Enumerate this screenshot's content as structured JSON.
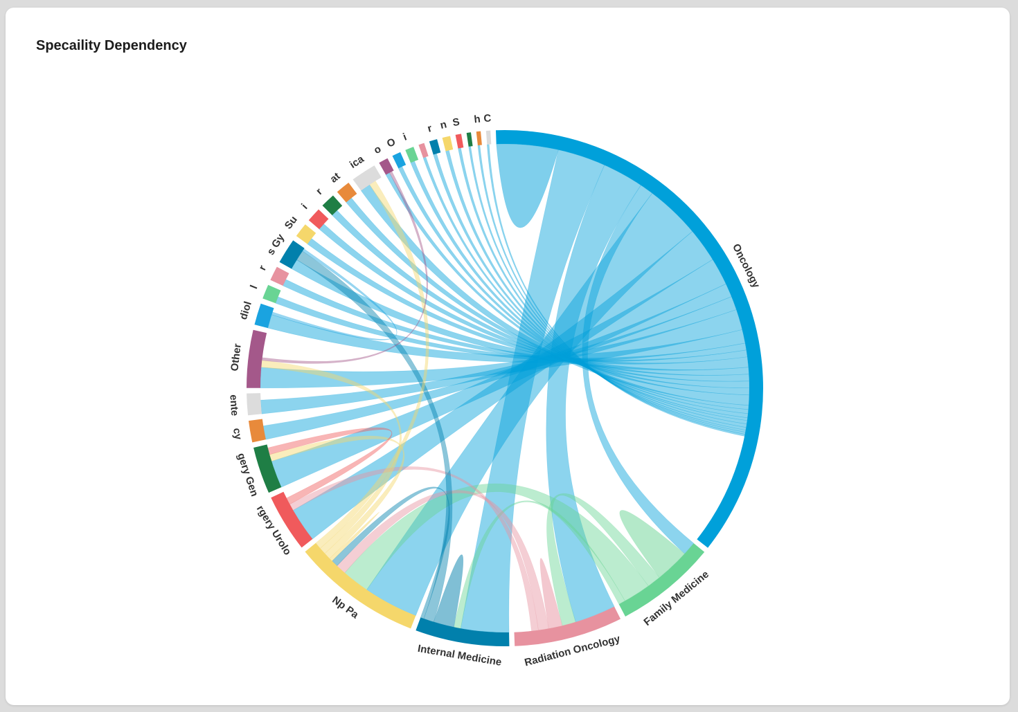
{
  "card": {
    "title": "Specaility Dependency"
  },
  "chart_data": {
    "type": "chord",
    "title": "Specaility Dependency",
    "segments": [
      {
        "id": "oncology",
        "label": "Oncology",
        "color": "#00a0da",
        "size": 80
      },
      {
        "id": "family",
        "label": "Family Medicine",
        "color": "#69d494",
        "size": 14
      },
      {
        "id": "radonc",
        "label": "Radiation Oncology",
        "color": "#e7929f",
        "size": 15
      },
      {
        "id": "internal",
        "label": "Internal Medicine",
        "color": "#0180ac",
        "size": 13
      },
      {
        "id": "nppa",
        "label": "Np Pa",
        "color": "#f5d76b",
        "size": 18
      },
      {
        "id": "urology",
        "label": "rgery Urolo",
        "color": "#f05a5c",
        "size": 8
      },
      {
        "id": "gensurg",
        "label": "gery Gen",
        "color": "#1f7e45",
        "size": 6.5
      },
      {
        "id": "emergency",
        "label": "cy",
        "color": "#e88a3b",
        "size": 3
      },
      {
        "id": "gastro",
        "label": "ente",
        "color": "#dcdcdc",
        "size": 3
      },
      {
        "id": "other",
        "label": "Other",
        "color": "#a4588a",
        "size": 8
      },
      {
        "id": "radiology",
        "label": "diol",
        "color": "#1aa3e0",
        "size": 3
      },
      {
        "id": "s1",
        "label": "l",
        "color": "#69d494",
        "size": 2
      },
      {
        "id": "s2",
        "label": "r",
        "color": "#e7929f",
        "size": 2
      },
      {
        "id": "gyn",
        "label": "s Gy",
        "color": "#0180ac",
        "size": 3.5
      },
      {
        "id": "s3",
        "label": "Su",
        "color": "#f5d76b",
        "size": 2
      },
      {
        "id": "s4",
        "label": "i",
        "color": "#f05a5c",
        "size": 2
      },
      {
        "id": "s5",
        "label": "r",
        "color": "#1f7e45",
        "size": 2
      },
      {
        "id": "s6",
        "label": "at",
        "color": "#e88a3b",
        "size": 2
      },
      {
        "id": "s7",
        "label": "ica",
        "color": "#dcdcdc",
        "size": 3.5
      },
      {
        "id": "s8",
        "label": "o",
        "color": "#a4588a",
        "size": 1.3
      },
      {
        "id": "s9",
        "label": "O",
        "color": "#1aa3e0",
        "size": 1.2
      },
      {
        "id": "s10",
        "label": "i",
        "color": "#69d494",
        "size": 1.2
      },
      {
        "id": "s11",
        "label": "",
        "color": "#e7929f",
        "size": 0.8
      },
      {
        "id": "s12",
        "label": "r",
        "color": "#0180ac",
        "size": 1.1
      },
      {
        "id": "s13",
        "label": "n",
        "color": "#f5d76b",
        "size": 1.1
      },
      {
        "id": "s14",
        "label": "S",
        "color": "#f05a5c",
        "size": 0.8
      },
      {
        "id": "s15",
        "label": "",
        "color": "#1f7e45",
        "size": 0.6
      },
      {
        "id": "s16",
        "label": "h",
        "color": "#e88a3b",
        "size": 0.6
      },
      {
        "id": "s17",
        "label": "C",
        "color": "#dcdcdc",
        "size": 0.6
      }
    ],
    "chords": [
      {
        "source": "oncology",
        "target": "oncology",
        "value": 9
      },
      {
        "source": "oncology",
        "target": "internal",
        "value": 7
      },
      {
        "source": "oncology",
        "target": "radonc",
        "value": 6
      },
      {
        "source": "oncology",
        "target": "family",
        "value": 2
      },
      {
        "source": "oncology",
        "target": "nppa",
        "value": 8
      },
      {
        "source": "oncology",
        "target": "urology",
        "value": 5
      },
      {
        "source": "oncology",
        "target": "gensurg",
        "value": 4
      },
      {
        "source": "oncology",
        "target": "emergency",
        "value": 2
      },
      {
        "source": "oncology",
        "target": "gastro",
        "value": 2
      },
      {
        "source": "oncology",
        "target": "other",
        "value": 3
      },
      {
        "source": "oncology",
        "target": "radiology",
        "value": 2
      },
      {
        "source": "oncology",
        "target": "s1",
        "value": 1
      },
      {
        "source": "oncology",
        "target": "s2",
        "value": 1
      },
      {
        "source": "oncology",
        "target": "gyn",
        "value": 1.5
      },
      {
        "source": "oncology",
        "target": "s3",
        "value": 1
      },
      {
        "source": "oncology",
        "target": "s4",
        "value": 1
      },
      {
        "source": "oncology",
        "target": "s5",
        "value": 1
      },
      {
        "source": "oncology",
        "target": "s6",
        "value": 1
      },
      {
        "source": "oncology",
        "target": "s7",
        "value": 1.5
      },
      {
        "source": "oncology",
        "target": "s8",
        "value": 0.6
      },
      {
        "source": "oncology",
        "target": "s9",
        "value": 0.6
      },
      {
        "source": "oncology",
        "target": "s10",
        "value": 0.6
      },
      {
        "source": "oncology",
        "target": "s11",
        "value": 0.4
      },
      {
        "source": "oncology",
        "target": "s12",
        "value": 0.5
      },
      {
        "source": "oncology",
        "target": "s13",
        "value": 0.5
      },
      {
        "source": "oncology",
        "target": "s14",
        "value": 0.4
      },
      {
        "source": "oncology",
        "target": "s15",
        "value": 0.3
      },
      {
        "source": "oncology",
        "target": "s16",
        "value": 0.3
      },
      {
        "source": "oncology",
        "target": "s17",
        "value": 0.3
      },
      {
        "source": "family",
        "target": "family",
        "value": 5
      },
      {
        "source": "family",
        "target": "radonc",
        "value": 2
      },
      {
        "source": "family",
        "target": "nppa",
        "value": 4
      },
      {
        "source": "family",
        "target": "internal",
        "value": 1
      },
      {
        "source": "radonc",
        "target": "radonc",
        "value": 2
      },
      {
        "source": "radonc",
        "target": "nppa",
        "value": 1.5
      },
      {
        "source": "radonc",
        "target": "urology",
        "value": 1
      },
      {
        "source": "internal",
        "target": "internal",
        "value": 3
      },
      {
        "source": "internal",
        "target": "gyn",
        "value": 1.5
      },
      {
        "source": "internal",
        "target": "nppa",
        "value": 1
      },
      {
        "source": "nppa",
        "target": "nppa",
        "value": 0.5
      },
      {
        "source": "nppa",
        "target": "gensurg",
        "value": 1
      },
      {
        "source": "nppa",
        "target": "other",
        "value": 1
      },
      {
        "source": "nppa",
        "target": "s7",
        "value": 1
      },
      {
        "source": "urology",
        "target": "gensurg",
        "value": 1
      },
      {
        "source": "other",
        "target": "s8",
        "value": 0.4
      },
      {
        "source": "radiology",
        "target": "gyn",
        "value": 0.4
      }
    ]
  }
}
